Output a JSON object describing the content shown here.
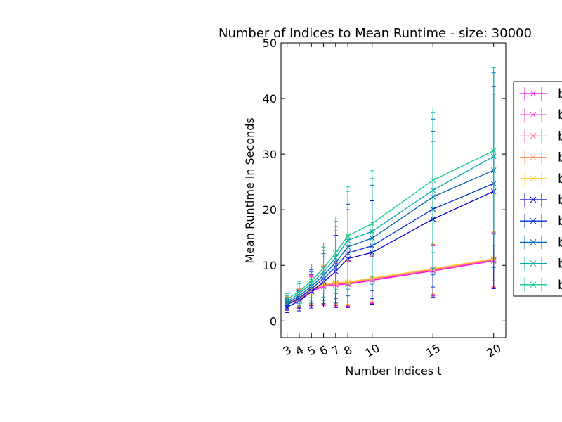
{
  "chart_data": {
    "type": "line",
    "title": "Number of Indices to Mean Runtime - size: 30000",
    "xlabel": "Number Indices t",
    "ylabel": "Mean Runtime in Seconds",
    "xlim": [
      2.5,
      21
    ],
    "ylim": [
      -3,
      50
    ],
    "x": [
      3,
      4,
      5,
      6,
      7,
      8,
      10,
      15,
      20
    ],
    "x_ticks": [
      3,
      4,
      5,
      6,
      7,
      8,
      10,
      15,
      20
    ],
    "y_ticks": [
      0,
      10,
      20,
      30,
      40,
      50
    ],
    "legend_position": "right-outside",
    "series": [
      {
        "name": "b",
        "color": "#ff00ff",
        "values": [
          3.0,
          3.8,
          5.3,
          6.2,
          6.5,
          6.6,
          7.3,
          9.0,
          10.8
        ],
        "err": [
          1.0,
          1.6,
          2.6,
          3.4,
          3.8,
          4.0,
          4.2,
          4.5,
          4.9
        ]
      },
      {
        "name": "b",
        "color": "#ff33cc",
        "values": [
          3.1,
          3.9,
          5.4,
          6.3,
          6.6,
          6.7,
          7.4,
          9.1,
          10.9
        ],
        "err": [
          1.0,
          1.6,
          2.6,
          3.4,
          3.8,
          4.0,
          4.2,
          4.5,
          4.9
        ]
      },
      {
        "name": "b",
        "color": "#ff6699",
        "values": [
          3.2,
          4.0,
          5.5,
          6.4,
          6.7,
          6.8,
          7.5,
          9.2,
          11.0
        ],
        "err": [
          1.0,
          1.6,
          2.6,
          3.4,
          3.8,
          4.0,
          4.2,
          4.5,
          4.9
        ]
      },
      {
        "name": "b",
        "color": "#ff9966",
        "values": [
          3.3,
          4.1,
          5.6,
          6.5,
          6.8,
          6.9,
          7.6,
          9.3,
          11.1
        ],
        "err": [
          1.0,
          1.6,
          2.6,
          3.4,
          3.8,
          4.0,
          4.2,
          4.5,
          4.9
        ]
      },
      {
        "name": "b",
        "color": "#ffcc33",
        "values": [
          3.4,
          4.2,
          5.7,
          6.6,
          6.9,
          7.0,
          7.7,
          9.4,
          11.2
        ],
        "err": [
          1.0,
          1.6,
          2.6,
          3.4,
          3.8,
          4.0,
          4.2,
          4.5,
          4.9
        ]
      },
      {
        "name": "b",
        "color": "#0000dd",
        "values": [
          2.5,
          3.6,
          5.3,
          7.0,
          8.9,
          11.2,
          12.3,
          18.3,
          23.3
        ],
        "err": [
          1.0,
          1.8,
          3.0,
          4.5,
          6.5,
          8.8,
          9.3,
          14.0,
          17.5
        ]
      },
      {
        "name": "b",
        "color": "#0033cc",
        "values": [
          2.9,
          4.1,
          5.8,
          7.6,
          9.7,
          12.2,
          13.5,
          20.1,
          24.7
        ],
        "err": [
          1.0,
          1.8,
          3.0,
          4.5,
          6.5,
          8.8,
          9.5,
          14.0,
          17.5
        ]
      },
      {
        "name": "b",
        "color": "#0066bb",
        "values": [
          3.2,
          4.5,
          6.2,
          8.2,
          10.5,
          13.3,
          14.9,
          22.3,
          27.1
        ],
        "err": [
          1.0,
          1.8,
          3.0,
          4.5,
          6.5,
          8.8,
          9.5,
          14.0,
          17.5
        ]
      },
      {
        "name": "b",
        "color": "#00aaaa",
        "values": [
          3.5,
          4.9,
          6.7,
          8.8,
          11.4,
          14.5,
          16.1,
          23.5,
          29.6
        ],
        "err": [
          1.0,
          1.8,
          3.0,
          4.5,
          6.5,
          8.8,
          9.5,
          14.0,
          16.0
        ]
      },
      {
        "name": "b",
        "color": "#11cc88",
        "values": [
          3.9,
          5.3,
          7.2,
          9.5,
          12.2,
          15.3,
          17.5,
          25.3,
          30.6
        ],
        "err": [
          1.0,
          1.8,
          3.0,
          4.5,
          6.5,
          8.8,
          9.5,
          13.0,
          15.0
        ]
      }
    ]
  }
}
